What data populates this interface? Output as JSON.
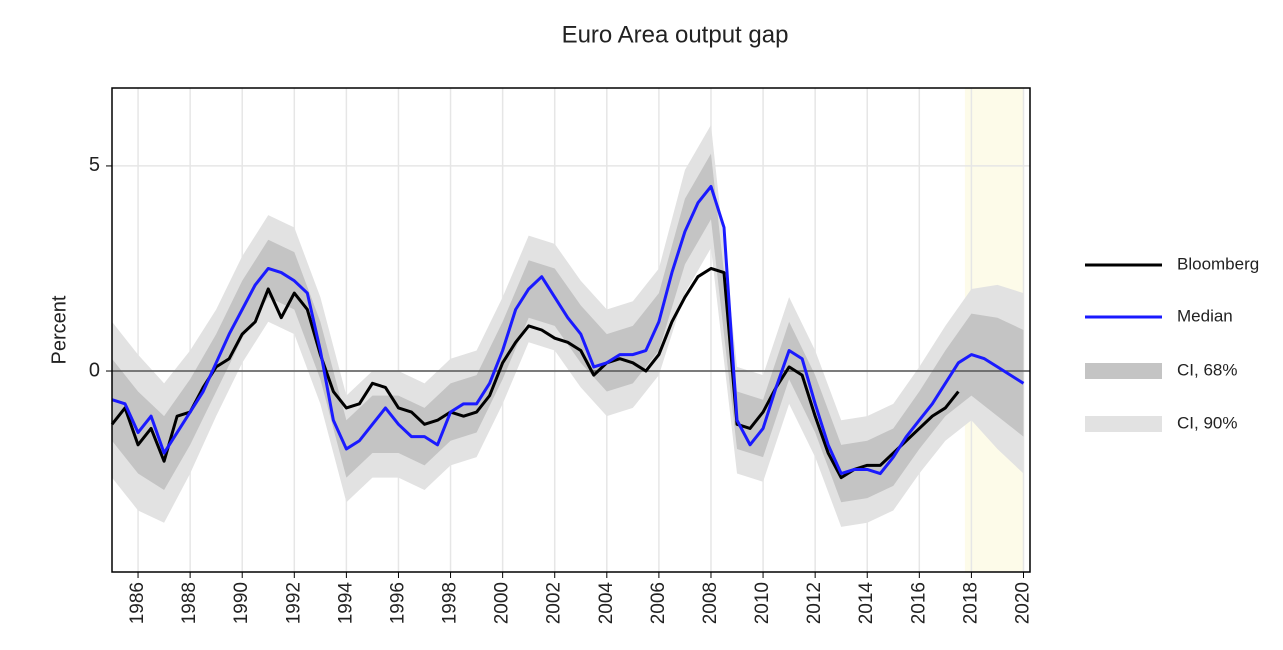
{
  "chart_data": {
    "type": "line",
    "title": "Euro Area output gap",
    "ylabel": "Percent",
    "xlim": [
      1985,
      2020.25
    ],
    "ylim": [
      -4.9,
      6.9
    ],
    "xticks": [
      1986,
      1988,
      1990,
      1992,
      1994,
      1996,
      1998,
      2000,
      2002,
      2004,
      2006,
      2008,
      2010,
      2012,
      2014,
      2016,
      2018,
      2020
    ],
    "yticks": [
      0,
      5
    ],
    "grid": true,
    "reference_line": 0,
    "shaded_region": {
      "xlim": [
        2017.75,
        2020
      ],
      "color": "#fdfbe9"
    },
    "x": [
      1985,
      1985.5,
      1986,
      1986.5,
      1987,
      1987.5,
      1988,
      1988.5,
      1989,
      1989.5,
      1990,
      1990.5,
      1991,
      1991.5,
      1992,
      1992.5,
      1993,
      1993.5,
      1994,
      1994.5,
      1995,
      1995.5,
      1996,
      1996.5,
      1997,
      1997.5,
      1998,
      1998.5,
      1999,
      1999.5,
      2000,
      2000.5,
      2001,
      2001.5,
      2002,
      2002.5,
      2003,
      2003.5,
      2004,
      2004.5,
      2005,
      2005.5,
      2006,
      2006.5,
      2007,
      2007.5,
      2008,
      2008.5,
      2009,
      2009.5,
      2010,
      2010.5,
      2011,
      2011.5,
      2012,
      2012.5,
      2013,
      2013.5,
      2014,
      2014.5,
      2015,
      2015.5,
      2016,
      2016.5,
      2017,
      2017.5,
      2018,
      2018.5,
      2019,
      2019.5,
      2020
    ],
    "series": [
      {
        "name": "Bloomberg",
        "color": "#000000",
        "values": [
          -1.3,
          -0.9,
          -1.8,
          -1.4,
          -2.2,
          -1.1,
          -1.0,
          -0.4,
          0.1,
          0.3,
          0.9,
          1.2,
          2.0,
          1.3,
          1.9,
          1.5,
          0.4,
          -0.5,
          -0.9,
          -0.8,
          -0.3,
          -0.4,
          -0.9,
          -1.0,
          -1.3,
          -1.2,
          -1.0,
          -1.1,
          -1.0,
          -0.6,
          0.2,
          0.7,
          1.1,
          1.0,
          0.8,
          0.7,
          0.5,
          -0.1,
          0.2,
          0.3,
          0.2,
          0.0,
          0.4,
          1.2,
          1.8,
          2.3,
          2.5,
          2.4,
          -1.3,
          -1.4,
          -1.0,
          -0.4,
          0.1,
          -0.1,
          -1.1,
          -2.0,
          -2.6,
          -2.4,
          -2.3,
          -2.3,
          -2.0,
          -1.7,
          -1.4,
          -1.1,
          -0.9,
          -0.5,
          null,
          null,
          null,
          null,
          null
        ]
      },
      {
        "name": "Median",
        "color": "#1a1aff",
        "values": [
          -0.7,
          -0.8,
          -1.5,
          -1.1,
          -2.0,
          -1.5,
          -1.0,
          -0.5,
          0.2,
          0.9,
          1.5,
          2.1,
          2.5,
          2.4,
          2.2,
          1.9,
          0.5,
          -1.2,
          -1.9,
          -1.7,
          -1.3,
          -0.9,
          -1.3,
          -1.6,
          -1.6,
          -1.8,
          -1.0,
          -0.8,
          -0.8,
          -0.3,
          0.5,
          1.5,
          2.0,
          2.3,
          1.8,
          1.3,
          0.9,
          0.1,
          0.2,
          0.4,
          0.4,
          0.5,
          1.2,
          2.4,
          3.4,
          4.1,
          4.5,
          3.5,
          -1.2,
          -1.8,
          -1.4,
          -0.4,
          0.5,
          0.3,
          -0.8,
          -1.8,
          -2.5,
          -2.4,
          -2.4,
          -2.5,
          -2.1,
          -1.6,
          -1.2,
          -0.8,
          -0.3,
          0.2,
          0.4,
          0.3,
          0.1,
          -0.1,
          -0.3
        ]
      }
    ],
    "band_x": [
      1985,
      1986,
      1987,
      1988,
      1989,
      1990,
      1991,
      1992,
      1993,
      1994,
      1995,
      1996,
      1997,
      1998,
      1999,
      2000,
      2001,
      2002,
      2003,
      2004,
      2005,
      2006,
      2007,
      2008,
      2009,
      2010,
      2011,
      2012,
      2013,
      2014,
      2015,
      2016,
      2017,
      2018,
      2019,
      2020
    ],
    "bands": [
      {
        "name": "CI, 68%",
        "color": "#c4c4c4",
        "upper": [
          0.3,
          -0.5,
          -1.1,
          -0.2,
          0.9,
          2.2,
          3.2,
          2.9,
          1.2,
          -1.2,
          -0.6,
          -0.6,
          -0.9,
          -0.3,
          -0.1,
          1.2,
          2.7,
          2.5,
          1.6,
          0.9,
          1.1,
          1.9,
          4.2,
          5.3,
          -0.5,
          -0.7,
          1.2,
          -0.1,
          -1.8,
          -1.7,
          -1.4,
          -0.5,
          0.5,
          1.4,
          1.3,
          1.0
        ],
        "lower": [
          -1.7,
          -2.5,
          -2.9,
          -1.8,
          -0.5,
          0.8,
          1.8,
          1.5,
          -0.2,
          -2.6,
          -2.0,
          -2.0,
          -2.3,
          -1.7,
          -1.5,
          -0.2,
          1.3,
          1.1,
          0.2,
          -0.5,
          -0.3,
          0.5,
          2.6,
          3.7,
          -1.9,
          -2.1,
          -0.2,
          -1.5,
          -3.2,
          -3.1,
          -2.8,
          -1.9,
          -1.1,
          -0.6,
          -1.1,
          -1.6
        ]
      },
      {
        "name": "CI, 90%",
        "color": "#e2e2e2",
        "upper": [
          1.2,
          0.4,
          -0.3,
          0.5,
          1.5,
          2.8,
          3.8,
          3.5,
          1.8,
          -0.6,
          0.0,
          0.0,
          -0.3,
          0.3,
          0.5,
          1.8,
          3.3,
          3.1,
          2.2,
          1.5,
          1.7,
          2.5,
          4.9,
          6.0,
          0.1,
          -0.1,
          1.8,
          0.5,
          -1.2,
          -1.1,
          -0.8,
          0.1,
          1.1,
          2.0,
          2.1,
          1.9
        ],
        "lower": [
          -2.6,
          -3.4,
          -3.7,
          -2.5,
          -1.1,
          0.2,
          1.2,
          0.9,
          -0.8,
          -3.2,
          -2.6,
          -2.6,
          -2.9,
          -2.3,
          -2.1,
          -0.8,
          0.7,
          0.5,
          -0.4,
          -1.1,
          -0.9,
          -0.1,
          1.9,
          3.0,
          -2.5,
          -2.7,
          -0.8,
          -2.1,
          -3.8,
          -3.7,
          -3.4,
          -2.5,
          -1.7,
          -1.2,
          -1.9,
          -2.5
        ]
      }
    ]
  }
}
